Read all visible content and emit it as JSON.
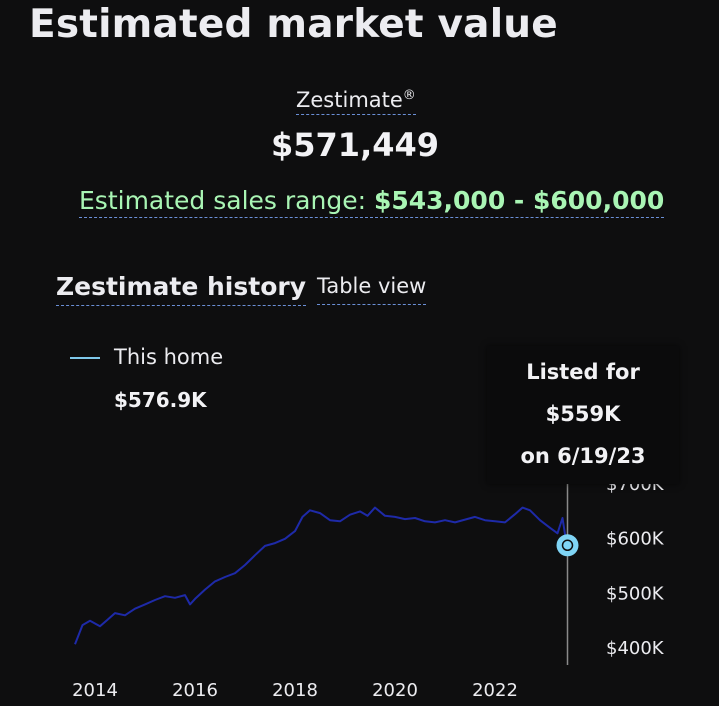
{
  "header": {
    "title": "Estimated market value"
  },
  "zestimate": {
    "label": "Zestimate",
    "registered": "®",
    "value": "$571,449",
    "range_label": "Estimated sales range: ",
    "range_value": "$543,000 - $600,000"
  },
  "history": {
    "title": "Zestimate history",
    "table_view": "Table view",
    "legend": {
      "label": "This home",
      "value": "$576.9K"
    },
    "tooltip": {
      "line1": "Listed for",
      "line2": "$559K",
      "line3": "on 6/19/23"
    }
  },
  "colors": {
    "line": "#1e2aa8",
    "marker": "#7fd4f5",
    "cursor": "#8a8a8a",
    "range_green": "#a9f5b4"
  },
  "chart_data": {
    "type": "line",
    "title": "",
    "xlabel": "",
    "ylabel": "",
    "x_ticks": [
      "2014",
      "2016",
      "2018",
      "2020",
      "2022"
    ],
    "y_ticks": [
      "$700K",
      "$600K",
      "$500K",
      "$400K"
    ],
    "y_tick_values": [
      700,
      600,
      500,
      400
    ],
    "ylim": [
      390,
      700
    ],
    "xlim": [
      2013.5,
      2023.9
    ],
    "series": [
      {
        "name": "This home",
        "x": [
          2013.6,
          2013.75,
          2013.9,
          2014.1,
          2014.25,
          2014.4,
          2014.6,
          2014.8,
          2015.0,
          2015.2,
          2015.4,
          2015.6,
          2015.8,
          2015.9,
          2016.0,
          2016.2,
          2016.4,
          2016.6,
          2016.8,
          2017.0,
          2017.2,
          2017.4,
          2017.6,
          2017.8,
          2018.0,
          2018.15,
          2018.3,
          2018.5,
          2018.7,
          2018.9,
          2019.1,
          2019.3,
          2019.45,
          2019.6,
          2019.8,
          2020.0,
          2020.2,
          2020.4,
          2020.6,
          2020.8,
          2021.0,
          2021.2,
          2021.4,
          2021.6,
          2021.8,
          2022.0,
          2022.2,
          2022.4,
          2022.55,
          2022.7,
          2022.9,
          2023.1,
          2023.25,
          2023.35,
          2023.45
        ],
        "y": [
          405,
          440,
          448,
          438,
          450,
          462,
          458,
          470,
          478,
          486,
          493,
          490,
          495,
          478,
          488,
          505,
          520,
          528,
          535,
          550,
          568,
          585,
          590,
          598,
          612,
          638,
          650,
          645,
          632,
          630,
          642,
          648,
          640,
          655,
          640,
          638,
          634,
          636,
          630,
          628,
          632,
          628,
          633,
          638,
          632,
          630,
          628,
          643,
          655,
          650,
          632,
          618,
          608,
          636,
          576.9
        ]
      }
    ],
    "annotation": {
      "x": 2023.45,
      "y": 559,
      "text": "Listed for $559K on 6/19/23"
    },
    "grid": false,
    "legend_position": "top-left"
  }
}
